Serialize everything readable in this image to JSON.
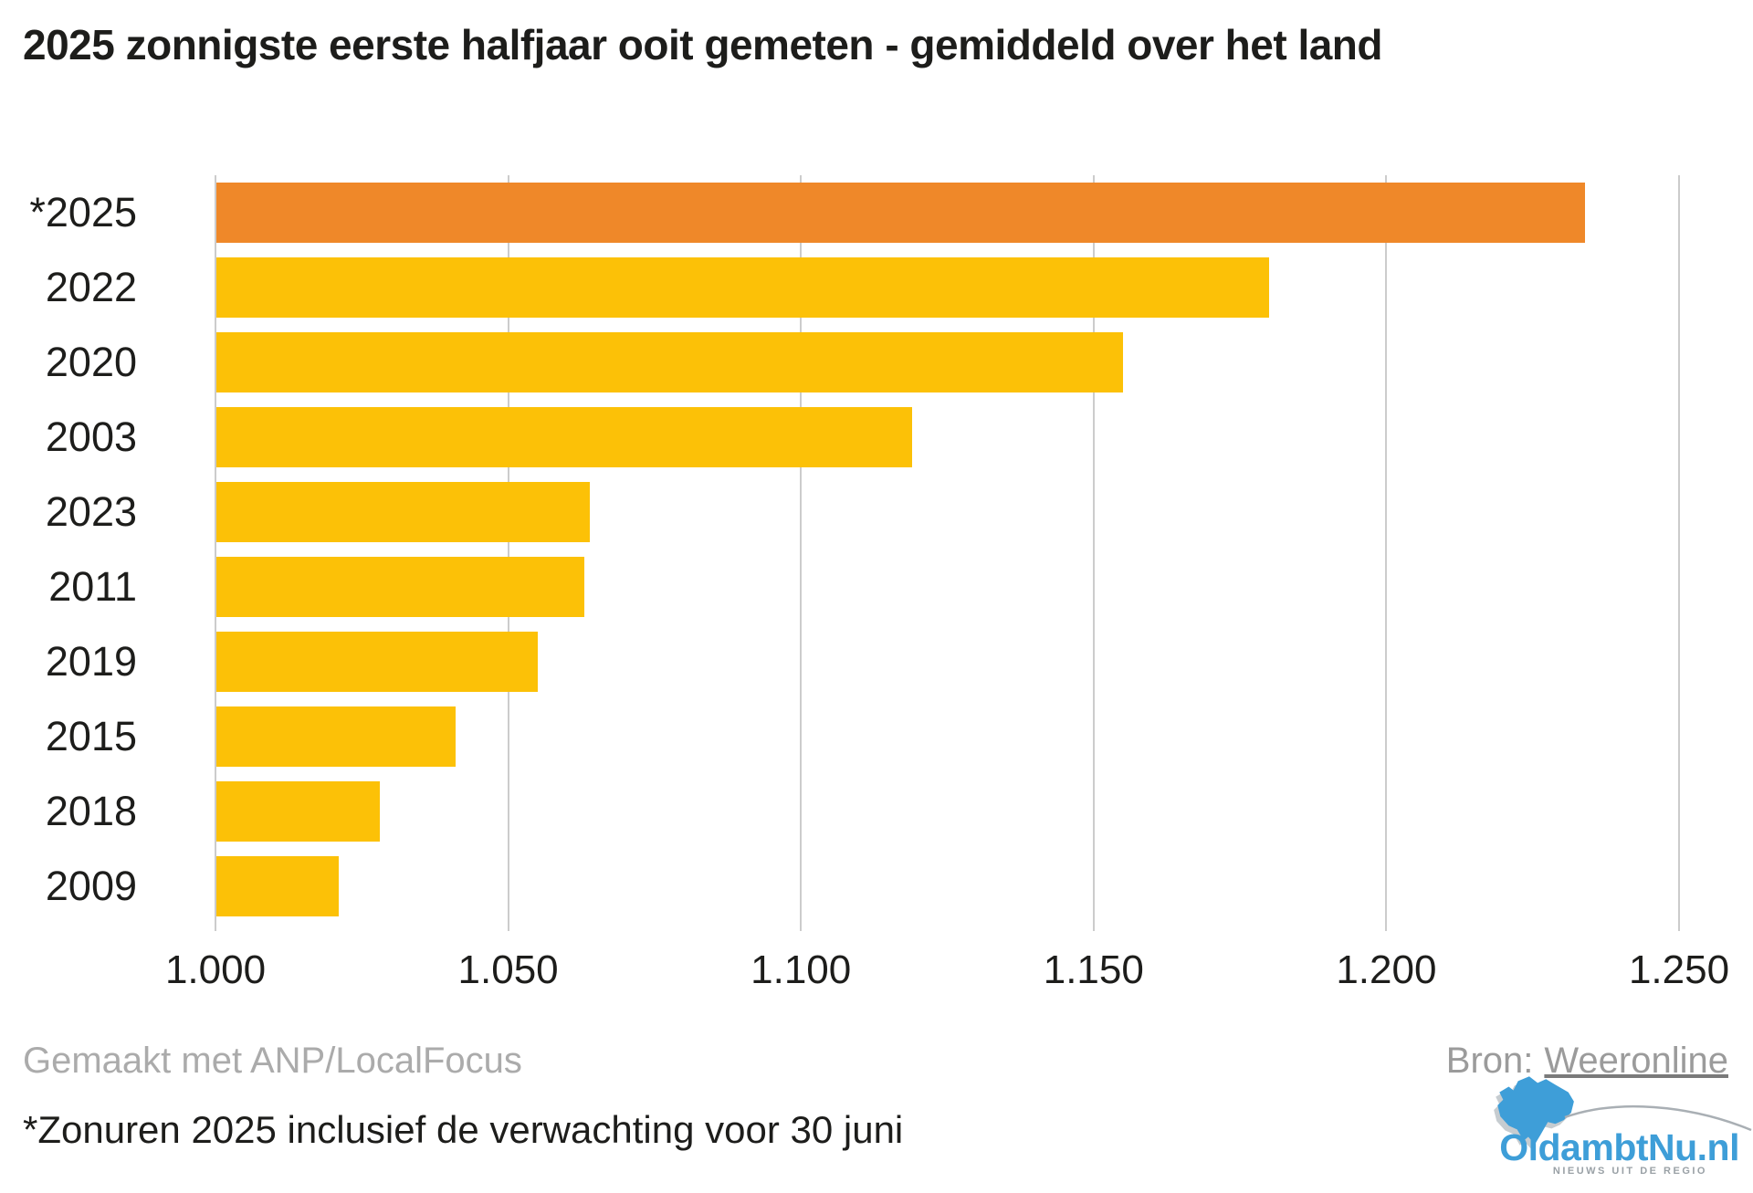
{
  "title": "2025 zonnigste eerste halfjaar ooit gemeten - gemiddeld over het land",
  "chart_data": {
    "type": "bar",
    "orientation": "horizontal",
    "title": "2025 zonnigste eerste halfjaar ooit gemeten - gemiddeld over het land",
    "categories": [
      "*2025",
      "2022",
      "2020",
      "2003",
      "2023",
      "2011",
      "2019",
      "2015",
      "2018",
      "2009"
    ],
    "values": [
      1234,
      1180,
      1155,
      1119,
      1064,
      1063,
      1055,
      1041,
      1028,
      1021
    ],
    "xlabel": "",
    "ylabel": "",
    "xlim": [
      1000,
      1250
    ],
    "x_ticks": [
      1000,
      1050,
      1100,
      1150,
      1200,
      1250
    ],
    "x_tick_labels": [
      "1.000",
      "1.050",
      "1.100",
      "1.150",
      "1.200",
      "1.250"
    ],
    "grid": "vertical-only",
    "legend": "none",
    "highlight_index": 0,
    "bar_colors": {
      "highlight": "#EF8829",
      "default": "#FCC107"
    },
    "gridline_color": "#cccccc"
  },
  "footer": {
    "credit": "Gemaakt met ANP/LocalFocus",
    "source_label": "Bron:",
    "source_link": "Weeronline",
    "note": "*Zonuren 2025 inclusief de verwachting voor 30 juni"
  },
  "logo": {
    "name": "OldambtNu.nl",
    "tagline": "NIEUWS UIT DE REGIO",
    "brand_color": "#3E9ED8"
  }
}
